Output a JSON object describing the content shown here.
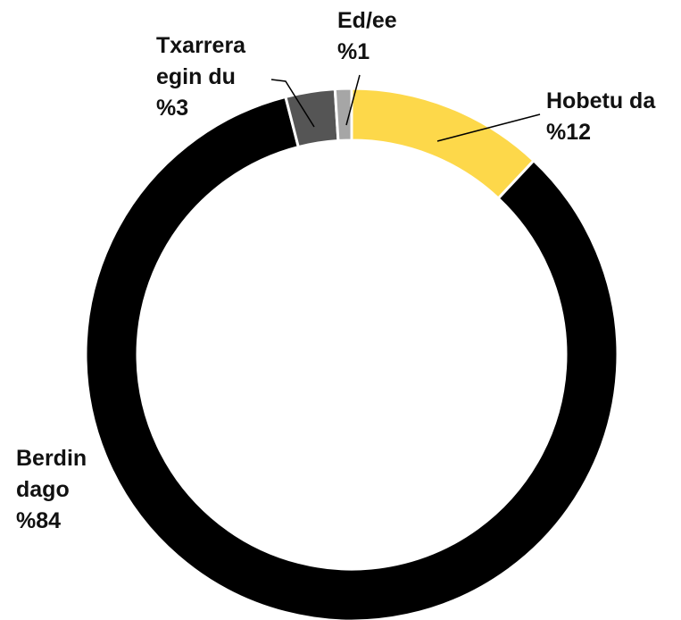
{
  "chart_data": {
    "type": "donut",
    "categories": [
      "Hobetu da",
      "Berdin dago",
      "Txarrera egin du",
      "Ed/ee"
    ],
    "values": [
      12,
      84,
      3,
      1
    ],
    "value_labels": [
      "%12",
      "%84",
      "%3",
      "%1"
    ],
    "colors": [
      "#fdd84a",
      "#000000",
      "#555555",
      "#a6a6a6"
    ]
  }
}
